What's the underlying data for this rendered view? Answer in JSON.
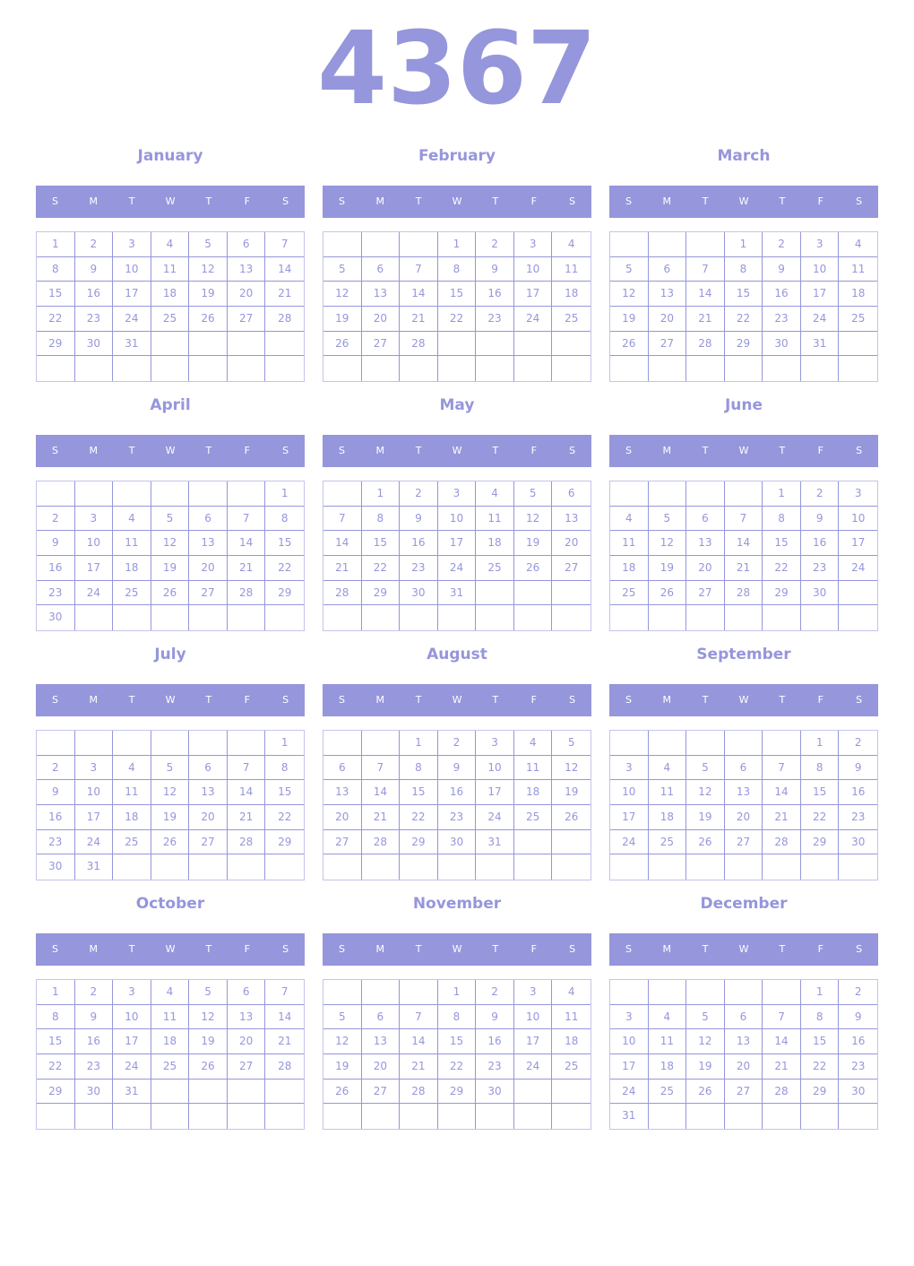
{
  "year": "4367",
  "weekdays": [
    "S",
    "M",
    "T",
    "W",
    "T",
    "F",
    "S"
  ],
  "color": "#9696dc",
  "months": [
    {
      "name": "January",
      "start": 0,
      "days": 31
    },
    {
      "name": "February",
      "start": 3,
      "days": 28
    },
    {
      "name": "March",
      "start": 3,
      "days": 31
    },
    {
      "name": "April",
      "start": 6,
      "days": 30
    },
    {
      "name": "May",
      "start": 1,
      "days": 31
    },
    {
      "name": "June",
      "start": 4,
      "days": 30
    },
    {
      "name": "July",
      "start": 6,
      "days": 31
    },
    {
      "name": "August",
      "start": 2,
      "days": 31
    },
    {
      "name": "September",
      "start": 5,
      "days": 30
    },
    {
      "name": "October",
      "start": 0,
      "days": 31
    },
    {
      "name": "November",
      "start": 3,
      "days": 30
    },
    {
      "name": "December",
      "start": 5,
      "days": 31
    }
  ]
}
